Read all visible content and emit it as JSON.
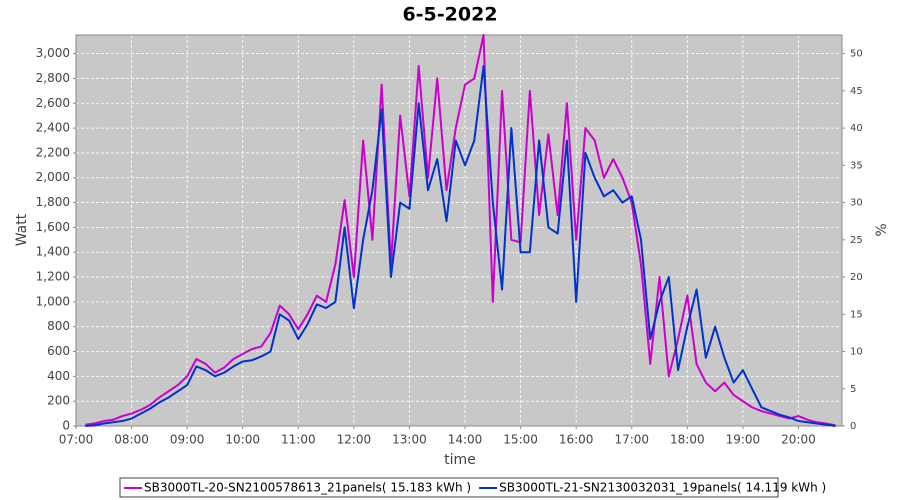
{
  "chart_data": {
    "type": "line",
    "title": "6-5-2022",
    "x_label": "time",
    "y_label": "Watt",
    "y2_label": "%",
    "x": [
      "07:10",
      "07:20",
      "07:30",
      "07:40",
      "07:50",
      "08:00",
      "08:10",
      "08:20",
      "08:30",
      "08:40",
      "08:50",
      "09:00",
      "09:10",
      "09:20",
      "09:30",
      "09:40",
      "09:50",
      "10:00",
      "10:10",
      "10:20",
      "10:30",
      "10:40",
      "10:50",
      "11:00",
      "11:10",
      "11:20",
      "11:30",
      "11:40",
      "11:50",
      "12:00",
      "12:10",
      "12:20",
      "12:30",
      "12:40",
      "12:50",
      "13:00",
      "13:10",
      "13:20",
      "13:30",
      "13:40",
      "13:50",
      "14:00",
      "14:10",
      "14:20",
      "14:30",
      "14:40",
      "14:50",
      "15:00",
      "15:10",
      "15:20",
      "15:30",
      "15:40",
      "15:50",
      "16:00",
      "16:10",
      "16:20",
      "16:30",
      "16:40",
      "16:50",
      "17:00",
      "17:10",
      "17:20",
      "17:30",
      "17:40",
      "17:50",
      "18:00",
      "18:10",
      "18:20",
      "18:30",
      "18:40",
      "18:50",
      "19:00",
      "19:10",
      "19:20",
      "19:30",
      "19:40",
      "19:50",
      "20:00",
      "20:10",
      "20:20",
      "20:30",
      "20:40"
    ],
    "series": [
      {
        "name": "SB3000TL-20-SN2100578613_21panels( 15.183 kWh )",
        "color": "#cc00cc",
        "values": [
          10,
          20,
          40,
          50,
          80,
          100,
          130,
          170,
          230,
          280,
          330,
          400,
          540,
          500,
          430,
          470,
          540,
          580,
          620,
          640,
          750,
          970,
          900,
          780,
          900,
          1050,
          1000,
          1300,
          1820,
          1200,
          2300,
          1500,
          2750,
          1300,
          2500,
          1850,
          2900,
          2000,
          2800,
          1900,
          2400,
          2750,
          2800,
          3150,
          1000,
          2700,
          1500,
          1480,
          2700,
          1700,
          2350,
          1700,
          2600,
          1500,
          2400,
          2300,
          2000,
          2150,
          2000,
          1800,
          1300,
          500,
          1200,
          400,
          700,
          1050,
          500,
          350,
          280,
          350,
          250,
          200,
          150,
          120,
          100,
          80,
          60,
          80,
          50,
          30,
          20,
          5
        ]
      },
      {
        "name": "SB3000TL-21-SN2130032031_19panels( 14.119 kWh )",
        "color": "#0033cc",
        "values": [
          0,
          5,
          20,
          30,
          40,
          60,
          100,
          140,
          190,
          230,
          280,
          330,
          480,
          450,
          400,
          430,
          480,
          520,
          530,
          560,
          600,
          900,
          850,
          700,
          820,
          980,
          950,
          1000,
          1600,
          950,
          1500,
          1900,
          2550,
          1200,
          1800,
          1750,
          2600,
          1900,
          2150,
          1650,
          2300,
          2100,
          2300,
          2900,
          1800,
          1100,
          2400,
          1400,
          1400,
          2300,
          1600,
          1550,
          2300,
          1000,
          2200,
          2000,
          1850,
          1900,
          1800,
          1850,
          1500,
          700,
          1000,
          1200,
          450,
          800,
          1100,
          550,
          800,
          550,
          350,
          450,
          300,
          150,
          120,
          90,
          70,
          40,
          30,
          20,
          10,
          0
        ]
      }
    ],
    "xlim": [
      "07:00",
      "20:47"
    ],
    "xticks": [
      "07:00",
      "08:00",
      "09:00",
      "10:00",
      "11:00",
      "12:00",
      "13:00",
      "14:00",
      "15:00",
      "16:00",
      "17:00",
      "18:00",
      "19:00",
      "20:00"
    ],
    "ylim": [
      0,
      3150
    ],
    "yticks": [
      0,
      200,
      400,
      600,
      800,
      {
        "value": 1000,
        "label": "1,000"
      },
      {
        "value": 1200,
        "label": "1,200"
      },
      {
        "value": 1400,
        "label": "1,400"
      },
      {
        "value": 1600,
        "label": "1,600"
      },
      {
        "value": 1800,
        "label": "1,800"
      },
      {
        "value": 2000,
        "label": "2,000"
      },
      {
        "value": 2200,
        "label": "2,200"
      },
      {
        "value": 2400,
        "label": "2,400"
      },
      {
        "value": 2600,
        "label": "2,600"
      },
      {
        "value": 2800,
        "label": "2,800"
      },
      {
        "value": 3000,
        "label": "3,000"
      }
    ],
    "y2lim": [
      0,
      52.5
    ],
    "y2ticks": [
      0,
      5,
      10,
      15,
      20,
      25,
      30,
      35,
      40,
      45,
      50
    ],
    "grid": true,
    "legend": "bottom"
  }
}
